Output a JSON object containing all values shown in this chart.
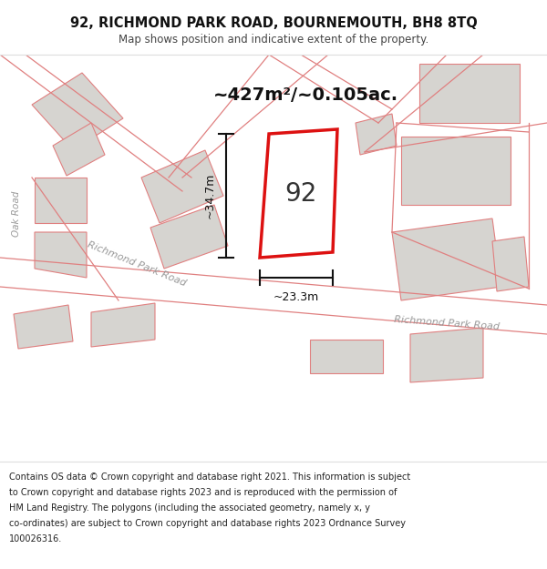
{
  "title_line1": "92, RICHMOND PARK ROAD, BOURNEMOUTH, BH8 8TQ",
  "title_line2": "Map shows position and indicative extent of the property.",
  "area_text": "~427m²/~0.105ac.",
  "label_92": "92",
  "dim_vertical": "~34.7m",
  "dim_horizontal": "~23.3m",
  "road_label_left": "Richmond Park Road",
  "road_label_right": "Richmond Park Road",
  "road_label_oak": "Oak Road",
  "footer_line1": "Contains OS data © Crown copyright and database right 2021. This information is subject",
  "footer_line2": "to Crown copyright and database rights 2023 and is reproduced with the permission of",
  "footer_line3": "HM Land Registry. The polygons (including the associated geometry, namely x, y",
  "footer_line4": "co-ordinates) are subject to Crown copyright and database rights 2023 Ordnance Survey",
  "footer_line5": "100026316.",
  "map_bg": "#f0efec",
  "road_fill": "#ffffff",
  "building_fill": "#d6d4d0",
  "building_edge": "#c8c6c2",
  "lr": "#e08080",
  "dr": "#dd1111",
  "dim_color": "#111111",
  "label_color": "#333333",
  "road_text_color": "#999999",
  "title_color": "#111111",
  "footer_color": "#222222",
  "title_bg": "#ffffff",
  "footer_bg": "#ffffff"
}
